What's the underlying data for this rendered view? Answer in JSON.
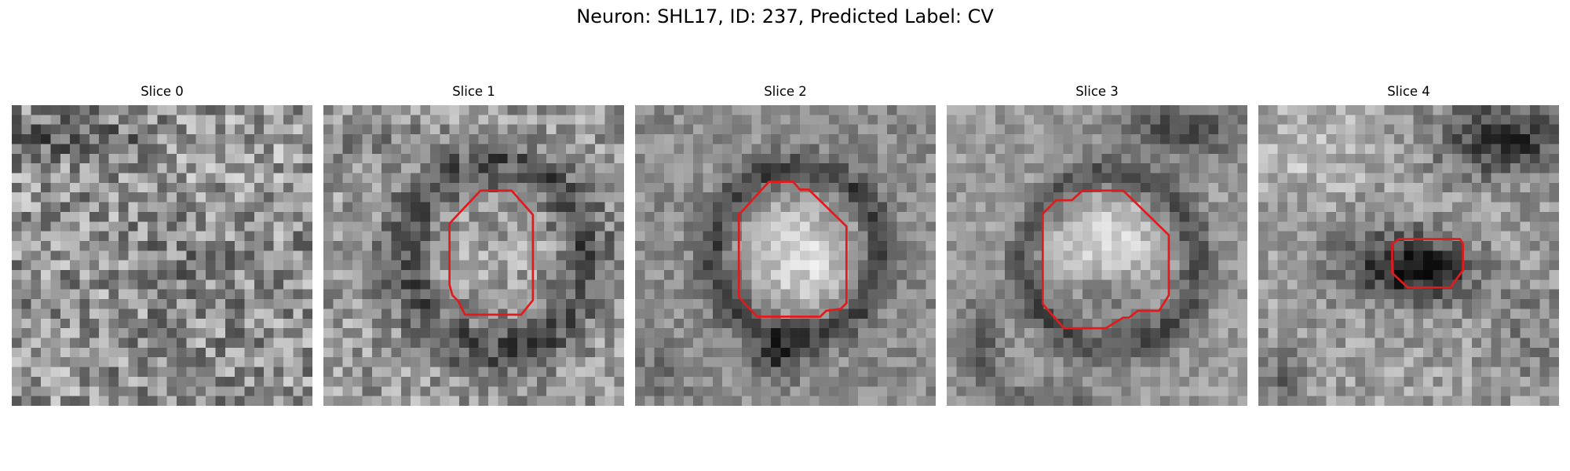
{
  "figure": {
    "title": "Neuron: SHL17, ID: 237, Predicted Label: CV",
    "colors": {
      "contour": "#e31a1c",
      "background": "#ffffff"
    },
    "colormap": "gray",
    "panels": [
      {
        "title": "Slice 0",
        "has_contour": false
      },
      {
        "title": "Slice 1",
        "has_contour": true
      },
      {
        "title": "Slice 2",
        "has_contour": true
      },
      {
        "title": "Slice 3",
        "has_contour": true
      },
      {
        "title": "Slice 4",
        "has_contour": true
      }
    ]
  }
}
